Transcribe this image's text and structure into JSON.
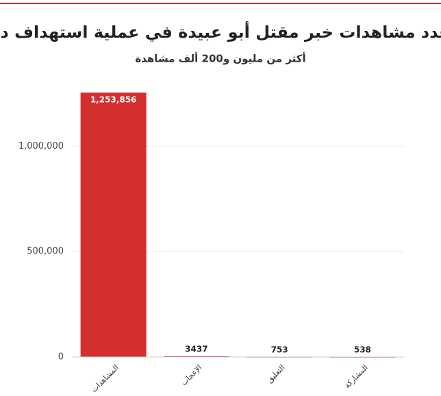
{
  "chart_data": {
    "type": "bar",
    "title": "بلغ عدد مشاهدات خبر مقتل أبو عبيدة في عملية استهداف دقيقة",
    "subtitle": "أكثر من مليون و200 ألف مشاهدة",
    "categories": [
      "المشاهدات",
      "الإعجاب",
      "التعليق",
      "المشاركة"
    ],
    "values": [
      1253856,
      3437,
      753,
      538
    ],
    "value_labels": [
      "1,253,856",
      "3437",
      "753",
      "538"
    ],
    "color": "#d32f2f",
    "ylim": [
      0,
      1300000
    ],
    "yticks": [
      0,
      {
        "value": 500000,
        "label": "500,000"
      },
      {
        "value": 1000000,
        "label": "1,000,000"
      }
    ],
    "grid": true
  }
}
